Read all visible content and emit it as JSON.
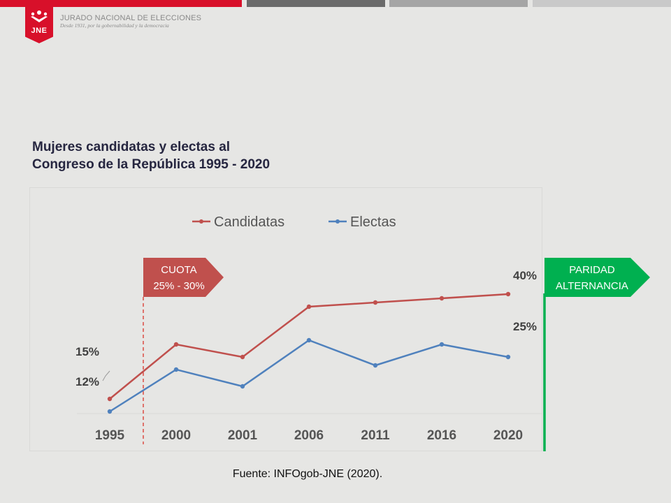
{
  "header": {
    "org_name": "JURADO NACIONAL DE ELECCIONES",
    "org_motto": "Desde 1931, por la gobernabilidad y la democracia",
    "logo_text": "JNE",
    "bar_colors": [
      "#d8102a",
      "#6b6b6b",
      "#a5a5a5",
      "#c9c9c9"
    ]
  },
  "chart_data": {
    "type": "line",
    "title_lines": [
      "Mujeres candidatas y electas al",
      "Congreso de la República 1995 - 2020"
    ],
    "categories": [
      "1995",
      "2000",
      "2001",
      "2006",
      "2011",
      "2016",
      "2020"
    ],
    "series": [
      {
        "name": "Candidatas",
        "color": "#c0504d",
        "values": [
          15,
          28,
          25,
          37,
          38,
          39,
          40
        ],
        "start_label": "15%",
        "end_label": "40%"
      },
      {
        "name": "Electas",
        "color": "#4f81bd",
        "values": [
          12,
          22,
          18,
          29,
          23,
          28,
          25
        ],
        "start_label": "12%",
        "end_label": "25%"
      }
    ],
    "ylim": [
      0,
      50
    ],
    "grid": false,
    "legend_position": "top-center",
    "annotations": [
      {
        "lines": [
          "CUOTA",
          "25% - 30%"
        ],
        "color": "#c0504d",
        "marker_between": [
          "1995",
          "2000"
        ]
      },
      {
        "lines": [
          "PARIDAD",
          "ALTERNANCIA"
        ],
        "color": "#00b050",
        "marker_after": "2020"
      }
    ]
  },
  "footer": {
    "source": "Fuente: INFOgob-JNE (2020)."
  }
}
